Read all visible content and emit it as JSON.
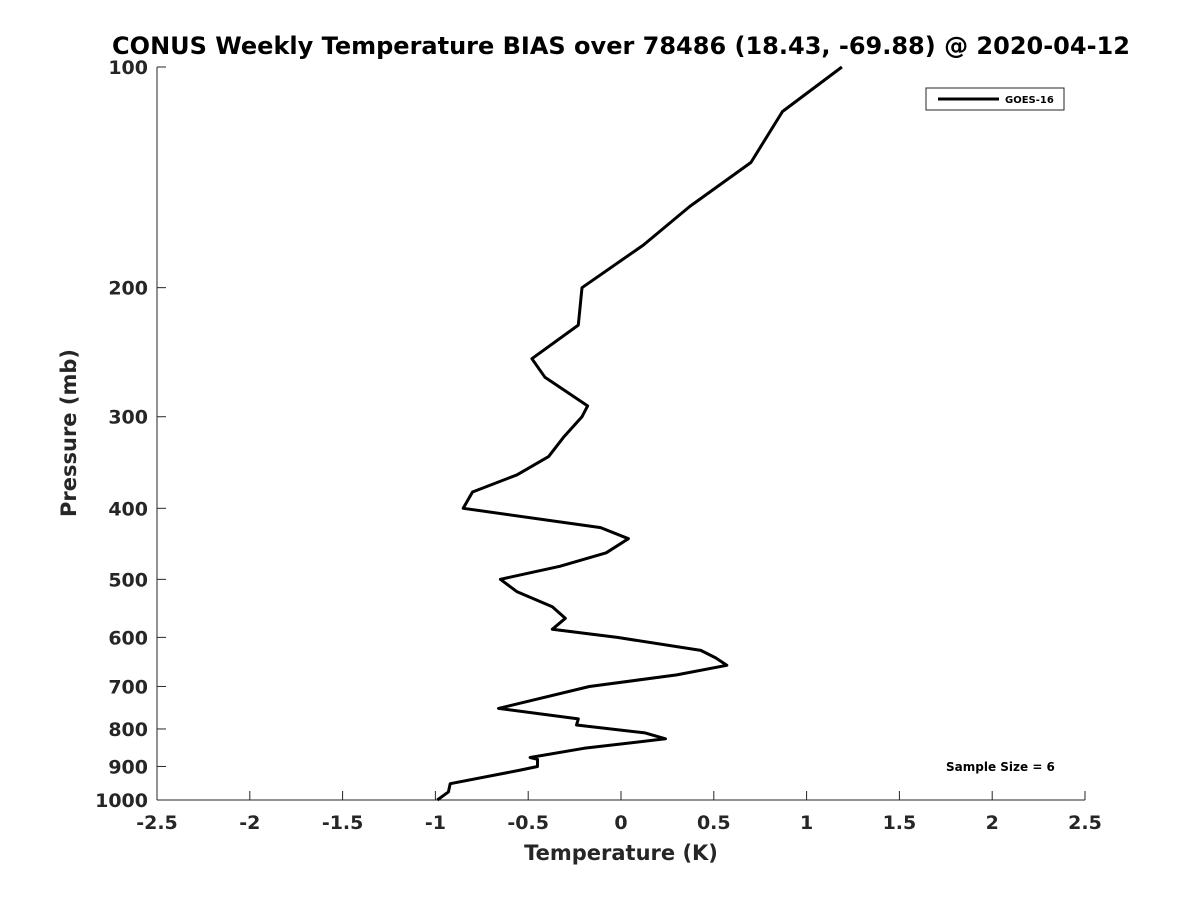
{
  "chart_data": {
    "type": "line",
    "title": "CONUS Weekly Temperature BIAS over 78486 (18.43, -69.88) @ 2020-04-12",
    "xlabel": "Temperature (K)",
    "ylabel": "Pressure (mb)",
    "xlim": [
      -2.5,
      2.5
    ],
    "ylim": [
      100,
      1000
    ],
    "y_scale": "log",
    "y_reversed": true,
    "x_ticks": [
      -2.5,
      -2,
      -1.5,
      -1,
      -0.5,
      0,
      0.5,
      1,
      1.5,
      2,
      2.5
    ],
    "x_tick_labels": [
      "-2.5",
      "-2",
      "-1.5",
      "-1",
      "-0.5",
      "0",
      "0.5",
      "1",
      "1.5",
      "2",
      "2.5"
    ],
    "y_ticks": [
      100,
      200,
      300,
      400,
      500,
      600,
      700,
      800,
      900,
      1000
    ],
    "y_tick_labels": [
      "100",
      "200",
      "300",
      "400",
      "500",
      "600",
      "700",
      "800",
      "900",
      "1000"
    ],
    "grid": false,
    "legend_position": "top-right",
    "line_color": "#000000",
    "series": [
      {
        "name": "GOES-16",
        "points": [
          {
            "x": 1.19,
            "y": 100
          },
          {
            "x": 0.87,
            "y": 115
          },
          {
            "x": 0.7,
            "y": 135
          },
          {
            "x": 0.37,
            "y": 155
          },
          {
            "x": 0.12,
            "y": 175
          },
          {
            "x": -0.21,
            "y": 200
          },
          {
            "x": -0.23,
            "y": 225
          },
          {
            "x": -0.48,
            "y": 250
          },
          {
            "x": -0.41,
            "y": 265
          },
          {
            "x": -0.18,
            "y": 290
          },
          {
            "x": -0.21,
            "y": 300
          },
          {
            "x": -0.31,
            "y": 320
          },
          {
            "x": -0.39,
            "y": 340
          },
          {
            "x": -0.56,
            "y": 360
          },
          {
            "x": -0.8,
            "y": 380
          },
          {
            "x": -0.85,
            "y": 400
          },
          {
            "x": -0.11,
            "y": 425
          },
          {
            "x": 0.04,
            "y": 440
          },
          {
            "x": -0.08,
            "y": 460
          },
          {
            "x": -0.33,
            "y": 480
          },
          {
            "x": -0.65,
            "y": 500
          },
          {
            "x": -0.56,
            "y": 520
          },
          {
            "x": -0.37,
            "y": 545
          },
          {
            "x": -0.3,
            "y": 565
          },
          {
            "x": -0.37,
            "y": 585
          },
          {
            "x": -0.02,
            "y": 600
          },
          {
            "x": 0.43,
            "y": 625
          },
          {
            "x": 0.51,
            "y": 640
          },
          {
            "x": 0.57,
            "y": 655
          },
          {
            "x": 0.3,
            "y": 675
          },
          {
            "x": -0.17,
            "y": 700
          },
          {
            "x": -0.66,
            "y": 750
          },
          {
            "x": -0.23,
            "y": 775
          },
          {
            "x": -0.24,
            "y": 790
          },
          {
            "x": 0.13,
            "y": 810
          },
          {
            "x": 0.24,
            "y": 825
          },
          {
            "x": -0.2,
            "y": 850
          },
          {
            "x": -0.49,
            "y": 875
          },
          {
            "x": -0.45,
            "y": 880
          },
          {
            "x": -0.45,
            "y": 900
          },
          {
            "x": -0.54,
            "y": 910
          },
          {
            "x": -0.92,
            "y": 950
          },
          {
            "x": -0.93,
            "y": 975
          },
          {
            "x": -0.99,
            "y": 1000
          }
        ]
      }
    ],
    "annotations": [
      {
        "text": "Sample Size = 6",
        "position": "bottom-right"
      }
    ]
  }
}
